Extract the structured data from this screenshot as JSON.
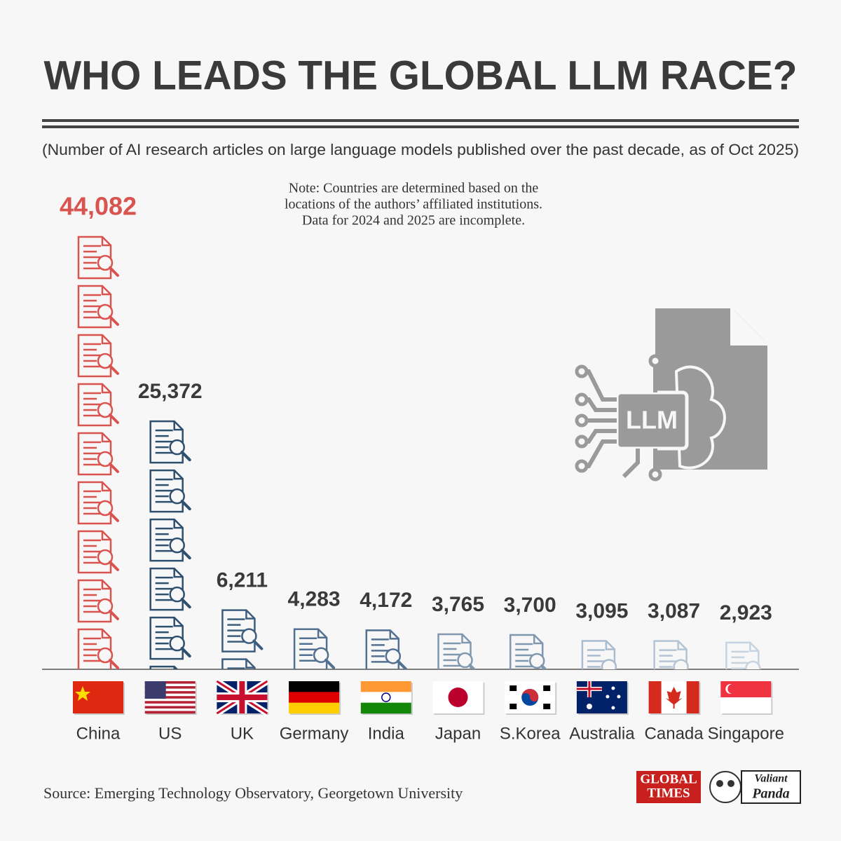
{
  "chart_data": {
    "type": "pictogram",
    "title": "WHO LEADS THE GLOBAL LLM RACE?",
    "subtitle": "(Number of AI research articles on large language models published over the past decade, as of Oct 2025)",
    "note": [
      "Note: Countries are determined based on the",
      "locations of the authors’ affiliated institutions.",
      "Data for 2024 and 2025 are incomplete."
    ],
    "categories": [
      "China",
      "US",
      "UK",
      "Germany",
      "India",
      "Japan",
      "S.Korea",
      "Australia",
      "Canada",
      "Singapore"
    ],
    "values": [
      44082,
      25372,
      6211,
      4283,
      4172,
      3765,
      3700,
      3095,
      3087,
      2923
    ],
    "value_labels": [
      "44,082",
      "25,372",
      "6,211",
      "4,283",
      "4,172",
      "3,765",
      "3,700",
      "3,095",
      "3,087",
      "2,923"
    ],
    "colors": [
      "#d9534f",
      "#2f4f6f",
      "#3d5d7e",
      "#52708f",
      "#52708f",
      "#8097b0",
      "#8097b0",
      "#a9bccf",
      "#b4c4d5",
      "#c6d3e0"
    ],
    "icon_text": "LLM",
    "source": "Source: Emerging Technology Observatory, Georgetown University",
    "logos": [
      "GLOBAL",
      "TIMES",
      "Valiant",
      "Panda"
    ]
  }
}
